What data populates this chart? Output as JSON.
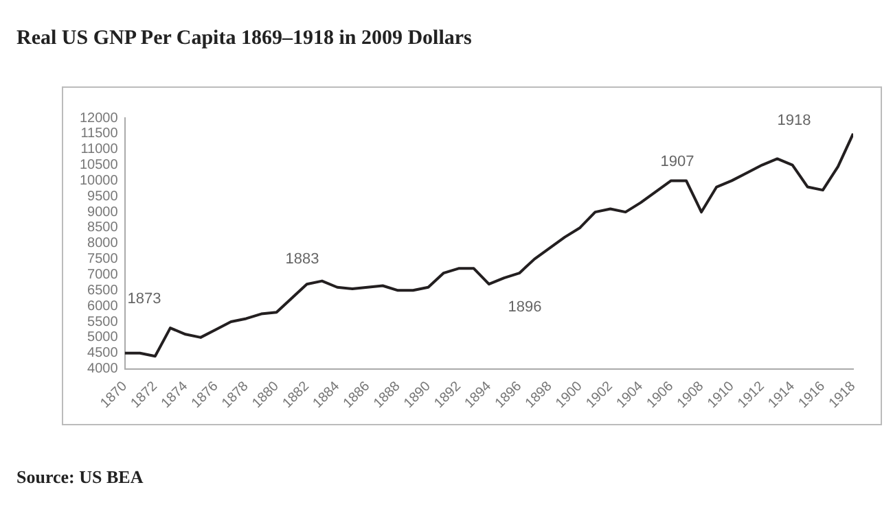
{
  "chart_data": {
    "type": "line",
    "title": "Real US GNP Per Capita 1869–1918 in 2009 Dollars",
    "x": [
      1870,
      1871,
      1872,
      1873,
      1874,
      1875,
      1876,
      1877,
      1878,
      1879,
      1880,
      1881,
      1882,
      1883,
      1884,
      1885,
      1886,
      1887,
      1888,
      1889,
      1890,
      1891,
      1892,
      1893,
      1894,
      1895,
      1896,
      1897,
      1898,
      1899,
      1900,
      1901,
      1902,
      1903,
      1904,
      1905,
      1906,
      1907,
      1908,
      1909,
      1910,
      1911,
      1912,
      1913,
      1914,
      1915,
      1916,
      1917,
      1918
    ],
    "series": [
      {
        "color": "#231f20",
        "values": [
          4500,
          4500,
          4400,
          5300,
          5100,
          5000,
          5250,
          5500,
          5600,
          5750,
          5800,
          6250,
          6700,
          6800,
          6600,
          6550,
          6600,
          6650,
          6500,
          6500,
          6600,
          7050,
          7200,
          7200,
          6700,
          6900,
          7050,
          7500,
          7850,
          8200,
          8500,
          9000,
          9100,
          9000,
          9300,
          9650,
          10000,
          10000,
          9000,
          9800,
          10000,
          10250,
          10500,
          10700,
          10500,
          9800,
          9700,
          10450,
          11500
        ]
      }
    ],
    "xlim": [
      1870,
      1918
    ],
    "xticks": [
      1870,
      1872,
      1874,
      1876,
      1878,
      1880,
      1882,
      1884,
      1886,
      1888,
      1890,
      1892,
      1894,
      1896,
      1898,
      1900,
      1902,
      1904,
      1906,
      1908,
      1910,
      1912,
      1914,
      1916,
      1918
    ],
    "ylim": [
      4000,
      12000
    ],
    "yticks": [
      4000,
      4500,
      5000,
      5500,
      6000,
      6500,
      7000,
      7500,
      8000,
      8500,
      9000,
      9500,
      10000,
      10500,
      11000,
      11500,
      12000
    ],
    "grid": false,
    "legend": false,
    "marker": "none",
    "line_style": "solid",
    "annotations": [
      "1873",
      "1883",
      "1896",
      "1907",
      "1918",
      "Source: US BEA"
    ]
  }
}
